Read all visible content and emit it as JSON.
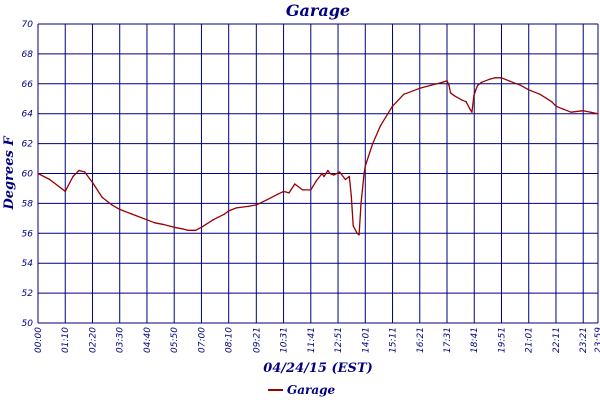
{
  "chart_data": {
    "type": "line",
    "title": "Garage",
    "xlabel": "04/24/15 (EST)",
    "ylabel": "Degrees F",
    "ylim": [
      50,
      70
    ],
    "y_ticks": [
      "50",
      "52",
      "54",
      "56",
      "58",
      "60",
      "62",
      "64",
      "66",
      "68",
      "70"
    ],
    "x_range_minutes": [
      0,
      1439
    ],
    "x_ticks": [
      "00:00",
      "01:10",
      "02:20",
      "03:30",
      "04:40",
      "05:50",
      "07:00",
      "08:10",
      "09:21",
      "10:31",
      "11:41",
      "12:51",
      "14:01",
      "15:11",
      "16:21",
      "17:31",
      "18:41",
      "19:51",
      "21:01",
      "22:11",
      "23:21",
      "23:59"
    ],
    "grid": true,
    "legend": "bottom-center",
    "colors": {
      "series": "#990000",
      "axis": "#000080"
    },
    "series": [
      {
        "name": "Garage",
        "x": [
          "00:00",
          "00:30",
          "01:00",
          "01:10",
          "01:30",
          "01:45",
          "02:00",
          "02:20",
          "02:45",
          "03:10",
          "03:30",
          "04:00",
          "04:40",
          "05:00",
          "05:20",
          "05:50",
          "06:10",
          "06:25",
          "06:45",
          "07:00",
          "07:30",
          "08:00",
          "08:10",
          "08:30",
          "09:00",
          "09:21",
          "09:45",
          "10:15",
          "10:31",
          "10:45",
          "11:00",
          "11:20",
          "11:41",
          "11:55",
          "12:10",
          "12:15",
          "12:25",
          "12:30",
          "12:40",
          "12:55",
          "13:10",
          "13:20",
          "13:25",
          "13:30",
          "13:40",
          "13:45",
          "13:50",
          "13:58",
          "14:01",
          "14:20",
          "14:40",
          "15:11",
          "15:40",
          "16:21",
          "16:50",
          "17:20",
          "17:31",
          "17:36",
          "17:40",
          "17:50",
          "18:10",
          "18:20",
          "18:30",
          "18:35",
          "18:40",
          "18:45",
          "18:50",
          "19:00",
          "19:20",
          "19:35",
          "19:51",
          "20:10",
          "20:40",
          "21:01",
          "21:30",
          "22:00",
          "22:11",
          "22:30",
          "22:50",
          "23:21",
          "23:40",
          "23:59"
        ],
        "y": [
          60.0,
          59.6,
          59.0,
          58.8,
          59.8,
          60.2,
          60.1,
          59.4,
          58.4,
          57.9,
          57.6,
          57.3,
          56.9,
          56.7,
          56.6,
          56.4,
          56.3,
          56.2,
          56.2,
          56.4,
          56.9,
          57.3,
          57.5,
          57.7,
          57.8,
          57.9,
          58.2,
          58.6,
          58.8,
          58.7,
          59.3,
          58.9,
          58.9,
          59.5,
          60.0,
          59.8,
          60.2,
          60.0,
          59.9,
          60.1,
          59.6,
          59.8,
          58.5,
          56.5,
          56.0,
          55.9,
          58.0,
          60.0,
          60.5,
          62.0,
          63.2,
          64.5,
          65.3,
          65.7,
          65.9,
          66.1,
          66.2,
          65.9,
          65.4,
          65.2,
          64.9,
          64.8,
          64.3,
          64.1,
          65.2,
          65.6,
          65.9,
          66.1,
          66.3,
          66.4,
          66.4,
          66.2,
          65.9,
          65.6,
          65.3,
          64.8,
          64.5,
          64.3,
          64.1,
          64.2,
          64.1,
          64.0
        ]
      }
    ]
  }
}
